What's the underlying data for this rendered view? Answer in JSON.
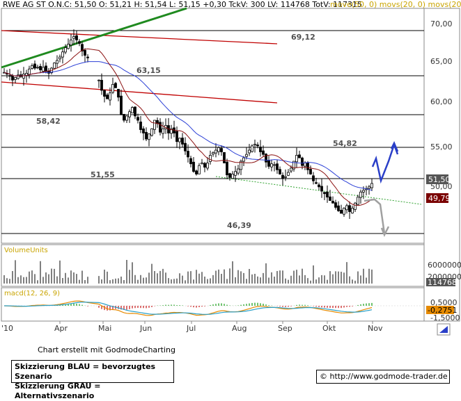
{
  "header": {
    "symbol": "RWE AG ST O.N.",
    "quote": "C: 51,50  O: 51,21  H: 51,54  L: 51,15  +0,30  TckV: 300  LV: 114768  TotV: 117315",
    "ma_text": "move(50, 0)  movs(20, 0)  movs(20, 0)"
  },
  "colors": {
    "candle": "#000000",
    "sma_blue": "#2b3fd6",
    "sma_red": "#8b1010",
    "resistance": "#c00000",
    "trend_up": "#1f8a1f",
    "trend_green_dotted": "#2ca02c",
    "level_line": "#000000",
    "scenario_blue": "#2a3fc8",
    "scenario_gray": "#a0a0a0",
    "price_tag": "#555555",
    "ma_tag": "#7a0000",
    "macd_line": "#e68a00",
    "macd_signal": "#2aa0c8",
    "macd_hist_neg": "#d04040",
    "macd_hist_pos": "#40b040"
  },
  "chart_data": [
    {
      "type": "candlestick",
      "title": "RWE AG ST O.N.",
      "y_range": [
        44.5,
        72
      ],
      "y_ticks": [
        "70,00",
        "65,00",
        "60,00",
        "55,00",
        "50,00"
      ],
      "x_months": [
        "'10",
        "Apr",
        "Mai",
        "Jun",
        "Jul",
        "Aug",
        "Sep",
        "Okt",
        "Nov"
      ],
      "levels": [
        "69,12",
        "63,15",
        "58,42",
        "54,82",
        "51,55",
        "46,39"
      ],
      "last_price_label": "51,50",
      "ma_label": "49,79",
      "close_series": [
        64.5,
        64.3,
        64.1,
        63.6,
        63.9,
        64.2,
        64.0,
        64.3,
        64.4,
        64.9,
        65.3,
        65.0,
        65.1,
        64.8,
        65.1,
        64.6,
        64.4,
        65.0,
        65.6,
        65.9,
        66.3,
        66.9,
        67.4,
        67.8,
        68.3,
        68.7,
        68.3,
        67.9,
        67.0,
        66.5,
        66.2,
        null,
        null,
        null,
        63.6,
        62.4,
        61.7,
        61.4,
        62.1,
        63.1,
        62.7,
        61.6,
        59.6,
        58.9,
        59.4,
        59.9,
        60.4,
        59.4,
        58.9,
        57.8,
        57.4,
        56.7,
        57.3,
        57.9,
        58.9,
        58.5,
        57.5,
        57.9,
        58.3,
        57.4,
        57.9,
        57.4,
        56.4,
        56.8,
        56.1,
        55.3,
        54.6,
        53.8,
        52.9,
        52.6,
        53.6,
        53.9,
        53.4,
        53.9,
        54.8,
        55.1,
        55.4,
        55.7,
        55.2,
        53.9,
        52.5,
        52.2,
        52.6,
        52.9,
        53.2,
        54.1,
        54.5,
        54.9,
        55.4,
        55.9,
        56.1,
        55.9,
        55.2,
        54.9,
        54.0,
        53.5,
        53.8,
        53.7,
        53.1,
        52.6,
        52.1,
        52.3,
        52.8,
        53.3,
        54.1,
        54.8,
        54.5,
        53.6,
        53.9,
        53.1,
        52.6,
        51.8,
        51.5,
        51.1,
        50.6,
        50.3,
        49.9,
        49.5,
        49.2,
        48.7,
        48.3,
        48.0,
        48.6,
        48.9,
        48.2,
        48.6,
        49.2,
        49.9,
        50.5,
        50.7,
        50.9,
        51.1,
        51.5
      ]
    },
    {
      "type": "bar",
      "title": "VolumeUnits",
      "y_ticks": [
        "6000000",
        "2000000"
      ],
      "last_value_label": "114768"
    },
    {
      "type": "line",
      "title": "macd(12, 26, 9)",
      "y_ticks": [
        "0,5000",
        "-1,5000"
      ],
      "last_value_label": "-0,2751"
    }
  ],
  "footer": {
    "credit": "Chart erstellt mit GodmodeCharting",
    "legend_blue": "Skizzierung BLAU = bevorzugtes Szenario",
    "legend_gray": "Skizzierung GRAU = Alternativszenario",
    "url": "http://www.godmode-trader.de"
  }
}
